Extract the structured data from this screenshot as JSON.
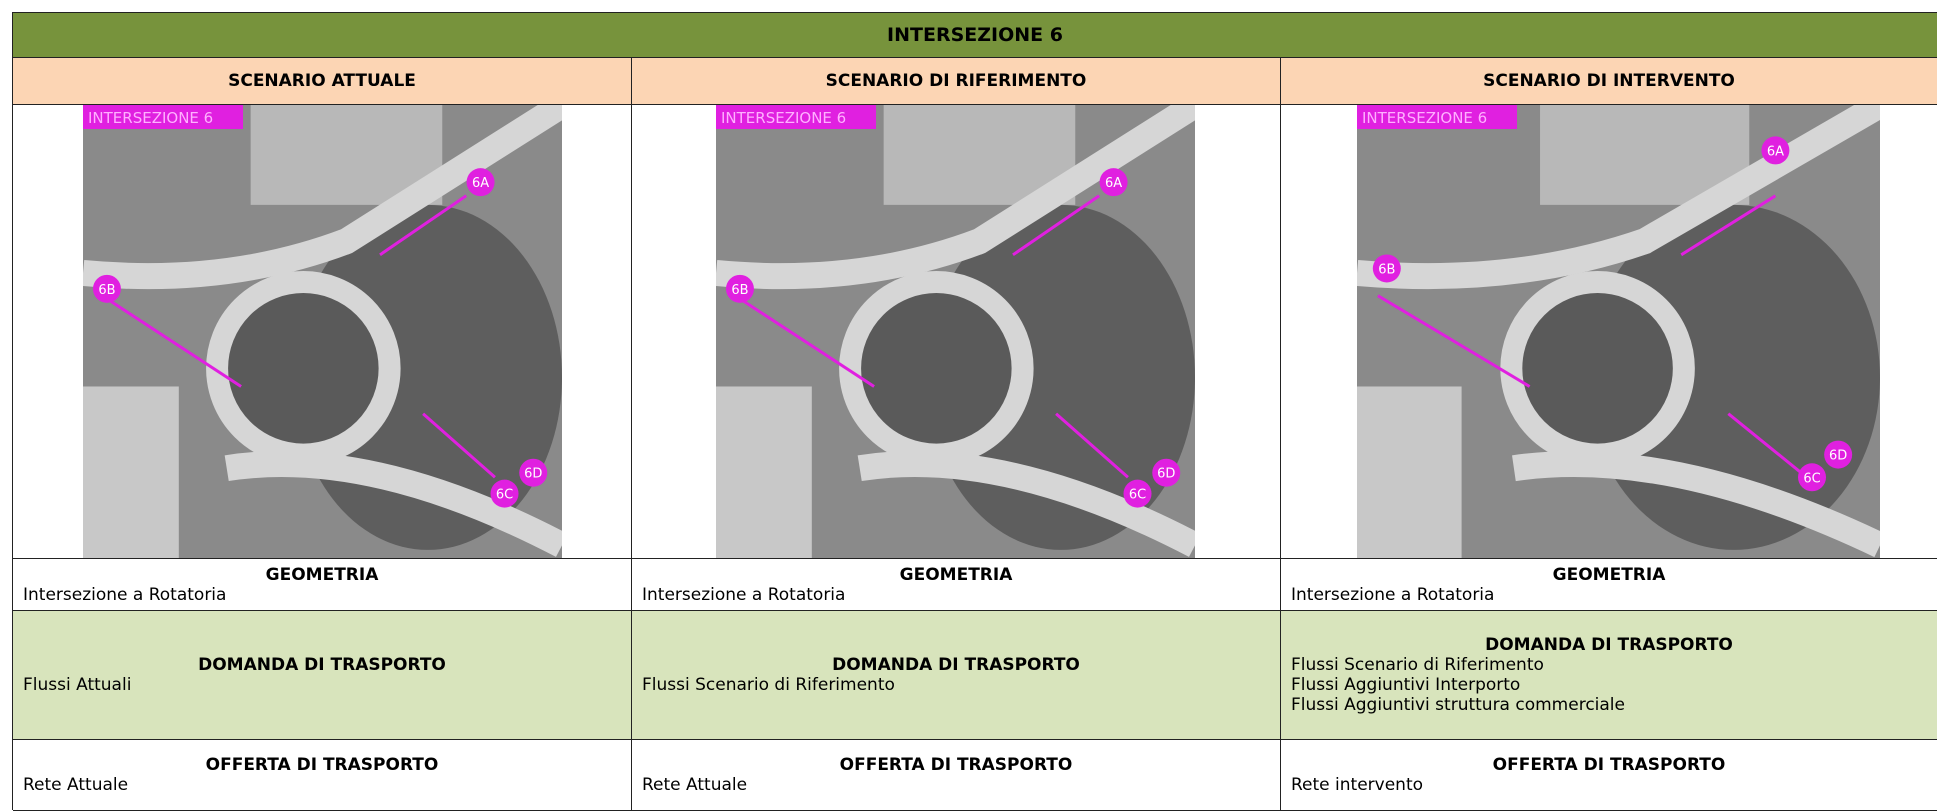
{
  "header": {
    "title": "INTERSEZIONE 6"
  },
  "columns": [
    {
      "scenario": "SCENARIO ATTUALE",
      "map": {
        "label": "INTERSEZIONE 6",
        "markers": [
          "6A",
          "6B",
          "6D",
          "6C"
        ]
      },
      "geometria": {
        "heading": "GEOMETRIA",
        "text": "Intersezione a Rotatoria"
      },
      "domanda": {
        "heading": "DOMANDA DI TRASPORTO",
        "lines": [
          "Flussi Attuali"
        ]
      },
      "offerta": {
        "heading": "OFFERTA DI TRASPORTO",
        "text": "Rete Attuale"
      }
    },
    {
      "scenario": "SCENARIO DI RIFERIMENTO",
      "map": {
        "label": "INTERSEZIONE 6",
        "markers": [
          "6A",
          "6B",
          "6D",
          "6C"
        ]
      },
      "geometria": {
        "heading": "GEOMETRIA",
        "text": "Intersezione a Rotatoria"
      },
      "domanda": {
        "heading": "DOMANDA DI TRASPORTO",
        "lines": [
          "Flussi Scenario di Riferimento"
        ]
      },
      "offerta": {
        "heading": "OFFERTA DI TRASPORTO",
        "text": "Rete Attuale"
      }
    },
    {
      "scenario": "SCENARIO DI INTERVENTO",
      "map": {
        "label": "INTERSEZIONE 6",
        "markers": [
          "6A",
          "6B",
          "6D",
          "6C"
        ]
      },
      "geometria": {
        "heading": "GEOMETRIA",
        "text": "Intersezione a Rotatoria"
      },
      "domanda": {
        "heading": "DOMANDA DI TRASPORTO",
        "lines": [
          "Flussi Scenario di Riferimento",
          "Flussi Aggiuntivi Interporto",
          "Flussi Aggiuntivi struttura commerciale"
        ]
      },
      "offerta": {
        "heading": "OFFERTA DI TRASPORTO",
        "text": "Rete intervento"
      }
    }
  ]
}
